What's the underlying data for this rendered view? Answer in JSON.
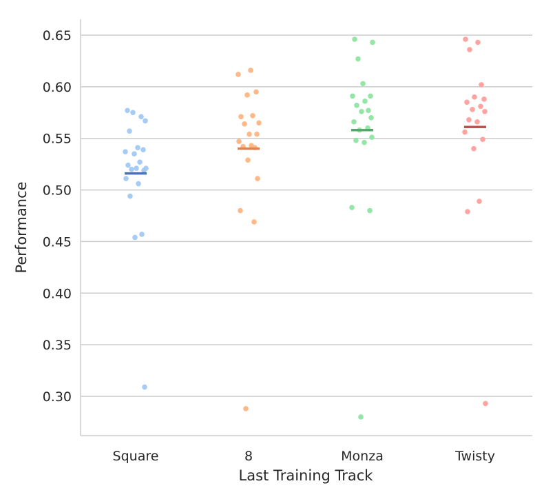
{
  "chart_data": {
    "type": "scatter",
    "subtype": "strip",
    "title": "",
    "xlabel": "Last Training Track",
    "ylabel": "Performance",
    "ylim": [
      0.262,
      0.665
    ],
    "yticks": [
      0.3,
      0.35,
      0.4,
      0.45,
      0.5,
      0.55,
      0.6,
      0.65
    ],
    "ytick_labels": [
      "0.30",
      "0.35",
      "0.40",
      "0.45",
      "0.50",
      "0.55",
      "0.60",
      "0.65"
    ],
    "grid": "horizontal",
    "legend": "none",
    "categories": [
      "Square",
      "8",
      "Monza",
      "Twisty"
    ],
    "series": [
      {
        "category": "Square",
        "point_color": "#a1c9f4",
        "mean_color": "#4c72b0",
        "mean": 0.516,
        "values": [
          0.577,
          0.571,
          0.575,
          0.567,
          0.557,
          0.541,
          0.537,
          0.539,
          0.535,
          0.527,
          0.524,
          0.521,
          0.52,
          0.521,
          0.519,
          0.511,
          0.506,
          0.494,
          0.457,
          0.454,
          0.309
        ]
      },
      {
        "category": "8",
        "point_color": "#ffb482",
        "mean_color": "#dd8452",
        "mean": 0.54,
        "values": [
          0.616,
          0.612,
          0.595,
          0.592,
          0.572,
          0.571,
          0.565,
          0.564,
          0.554,
          0.554,
          0.547,
          0.543,
          0.542,
          0.541,
          0.529,
          0.511,
          0.48,
          0.469,
          0.288
        ]
      },
      {
        "category": "Monza",
        "point_color": "#8de5a1",
        "mean_color": "#55a868",
        "mean": 0.558,
        "values": [
          0.646,
          0.643,
          0.627,
          0.603,
          0.591,
          0.591,
          0.586,
          0.582,
          0.577,
          0.576,
          0.57,
          0.566,
          0.56,
          0.558,
          0.551,
          0.548,
          0.546,
          0.483,
          0.48,
          0.28
        ]
      },
      {
        "category": "Twisty",
        "point_color": "#ff9f9b",
        "mean_color": "#c44e52",
        "mean": 0.561,
        "values": [
          0.646,
          0.643,
          0.636,
          0.602,
          0.59,
          0.588,
          0.585,
          0.581,
          0.578,
          0.576,
          0.568,
          0.566,
          0.556,
          0.549,
          0.54,
          0.489,
          0.479,
          0.293
        ]
      }
    ]
  }
}
